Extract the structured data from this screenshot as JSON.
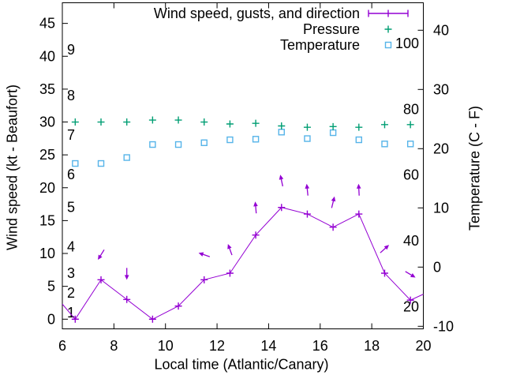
{
  "colors": {
    "wind": "#9400d3",
    "pressure": "#009e73",
    "temperature": "#56b4e9",
    "axis": "#000000",
    "background": "#ffffff"
  },
  "legend": {
    "items": [
      {
        "label": "Wind speed, gusts, and direction",
        "symbol": "errorbar-line",
        "color": "#9400d3"
      },
      {
        "label": "Pressure",
        "symbol": "plus",
        "color": "#009e73"
      },
      {
        "label": "Temperature",
        "symbol": "open-square",
        "color": "#56b4e9"
      }
    ]
  },
  "chart_data": {
    "type": "line",
    "xlabel": "Local time (Atlantic/Canary)",
    "ylabel_left": "Wind speed (kt - Beaufort)",
    "ylabel_right": "Temperature (C - F)",
    "grid": false,
    "legend_position": "top-right-inside",
    "x_axis": {
      "min": 6,
      "max": 20,
      "ticks": [
        6,
        8,
        10,
        12,
        14,
        16,
        18,
        20
      ]
    },
    "y_left": {
      "min": -1.47,
      "max": 48.14,
      "ticks": [
        0,
        5,
        10,
        15,
        20,
        25,
        30,
        35,
        40,
        45
      ]
    },
    "y_right": {
      "min": -10.43,
      "max": 44.64,
      "ticks": [
        -10,
        0,
        10,
        20,
        30,
        40
      ]
    },
    "beaufort_labels": [
      {
        "label": "1",
        "kt": 1
      },
      {
        "label": "2",
        "kt": 4
      },
      {
        "label": "3",
        "kt": 7
      },
      {
        "label": "4",
        "kt": 11
      },
      {
        "label": "5",
        "kt": 17
      },
      {
        "label": "6",
        "kt": 22
      },
      {
        "label": "7",
        "kt": 28
      },
      {
        "label": "8",
        "kt": 34
      },
      {
        "label": "9",
        "kt": 41
      }
    ],
    "fahrenheit_labels": [
      {
        "label": "20",
        "c": -6.67
      },
      {
        "label": "40",
        "c": 4.44
      },
      {
        "label": "60",
        "c": 15.56
      },
      {
        "label": "80",
        "c": 26.67
      },
      {
        "label": "100",
        "c": 37.78
      }
    ],
    "series": {
      "wind": {
        "name": "Wind speed, gusts, and direction",
        "units": "kt",
        "points": [
          {
            "t": 6.0,
            "kt": 2.3,
            "marker": false
          },
          {
            "t": 6.5,
            "kt": 0
          },
          {
            "t": 7.5,
            "kt": 6
          },
          {
            "t": 8.5,
            "kt": 3
          },
          {
            "t": 9.5,
            "kt": 0
          },
          {
            "t": 10.5,
            "kt": 2
          },
          {
            "t": 11.5,
            "kt": 6
          },
          {
            "t": 12.5,
            "kt": 7
          },
          {
            "t": 13.5,
            "kt": 12.8
          },
          {
            "t": 14.5,
            "kt": 17
          },
          {
            "t": 15.5,
            "kt": 16
          },
          {
            "t": 16.5,
            "kt": 14
          },
          {
            "t": 17.5,
            "kt": 16
          },
          {
            "t": 18.5,
            "kt": 7
          },
          {
            "t": 19.5,
            "kt": 2.9
          },
          {
            "t": 20.0,
            "kt": 3.8,
            "marker": false
          }
        ]
      },
      "gusts": [
        {
          "t": 7.5,
          "kt": 9.8,
          "dir": 238
        },
        {
          "t": 8.5,
          "kt": 6.9,
          "dir": 270
        },
        {
          "t": 11.5,
          "kt": 9.8,
          "dir": 161
        },
        {
          "t": 12.5,
          "kt": 10.6,
          "dir": 110
        },
        {
          "t": 13.5,
          "kt": 17.0,
          "dir": 95
        },
        {
          "t": 14.5,
          "kt": 21.1,
          "dir": 102
        },
        {
          "t": 15.5,
          "kt": 19.7,
          "dir": 96
        },
        {
          "t": 16.5,
          "kt": 17.8,
          "dir": 76
        },
        {
          "t": 17.5,
          "kt": 19.7,
          "dir": 93
        },
        {
          "t": 18.5,
          "kt": 10.7,
          "dir": 42
        },
        {
          "t": 19.5,
          "kt": 6.8,
          "dir": -31
        }
      ],
      "pressure": {
        "name": "Pressure",
        "axis": "left",
        "t": [
          6.5,
          7.5,
          8.5,
          9.5,
          10.5,
          11.5,
          12.5,
          13.5,
          14.5,
          15.5,
          16.5,
          17.5,
          18.5,
          19.5
        ],
        "values": [
          30.0,
          30.0,
          30.0,
          30.3,
          30.3,
          30.0,
          29.7,
          29.8,
          29.4,
          29.2,
          29.3,
          29.2,
          29.6,
          29.6
        ]
      },
      "temperature": {
        "name": "Temperature",
        "axis": "right",
        "t": [
          6.5,
          7.5,
          8.5,
          9.5,
          10.5,
          11.5,
          12.5,
          13.5,
          14.5,
          15.5,
          16.5,
          17.5,
          18.5,
          19.5
        ],
        "c": [
          17.5,
          17.5,
          18.5,
          20.7,
          20.7,
          21.0,
          21.5,
          21.6,
          22.8,
          21.7,
          22.7,
          21.5,
          20.8,
          20.8
        ]
      }
    }
  }
}
